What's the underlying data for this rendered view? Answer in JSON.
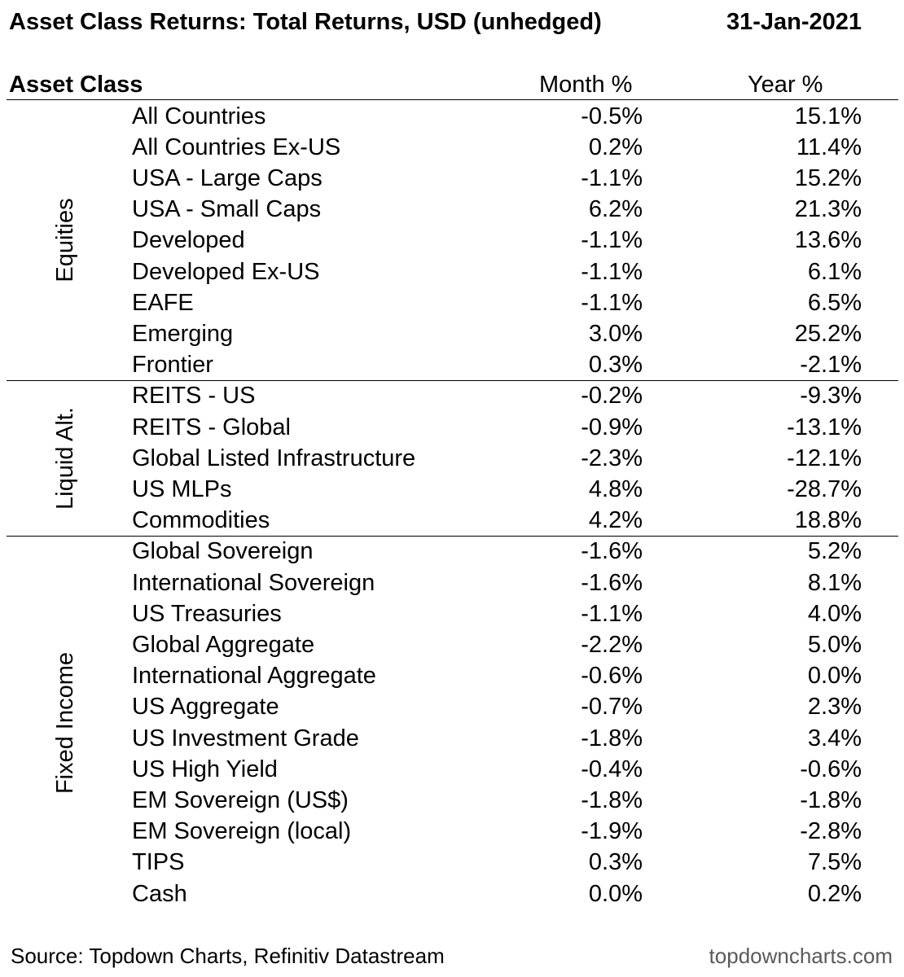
{
  "title": "Asset Class Returns: Total Returns, USD (unhedged)",
  "date": "31-Jan-2021",
  "headers": {
    "asset_class": "Asset Class",
    "month": "Month %",
    "year": "Year %"
  },
  "chart_data": {
    "type": "table",
    "columns": [
      "Asset Class",
      "Month %",
      "Year %"
    ],
    "groups": [
      {
        "name": "Equities",
        "rows": [
          {
            "name": "All Countries",
            "month": "-0.5%",
            "year": "15.1%"
          },
          {
            "name": "All Countries Ex-US",
            "month": "0.2%",
            "year": "11.4%"
          },
          {
            "name": "USA - Large Caps",
            "month": "-1.1%",
            "year": "15.2%"
          },
          {
            "name": "USA - Small Caps",
            "month": "6.2%",
            "year": "21.3%"
          },
          {
            "name": "Developed",
            "month": "-1.1%",
            "year": "13.6%"
          },
          {
            "name": "Developed Ex-US",
            "month": "-1.1%",
            "year": "6.1%"
          },
          {
            "name": "EAFE",
            "month": "-1.1%",
            "year": "6.5%"
          },
          {
            "name": "Emerging",
            "month": "3.0%",
            "year": "25.2%"
          },
          {
            "name": "Frontier",
            "month": "0.3%",
            "year": "-2.1%"
          }
        ]
      },
      {
        "name": "Liquid Alt.",
        "rows": [
          {
            "name": "REITS - US",
            "month": "-0.2%",
            "year": "-9.3%"
          },
          {
            "name": "REITS - Global",
            "month": "-0.9%",
            "year": "-13.1%"
          },
          {
            "name": "Global Listed Infrastructure",
            "month": "-2.3%",
            "year": "-12.1%"
          },
          {
            "name": "US MLPs",
            "month": "4.8%",
            "year": "-28.7%"
          },
          {
            "name": "Commodities",
            "month": "4.2%",
            "year": "18.8%"
          }
        ]
      },
      {
        "name": "Fixed Income",
        "rows": [
          {
            "name": "Global Sovereign",
            "month": "-1.6%",
            "year": "5.2%"
          },
          {
            "name": "International Sovereign",
            "month": "-1.6%",
            "year": "8.1%"
          },
          {
            "name": "US Treasuries",
            "month": "-1.1%",
            "year": "4.0%"
          },
          {
            "name": "Global Aggregate",
            "month": "-2.2%",
            "year": "5.0%"
          },
          {
            "name": "International Aggregate",
            "month": "-0.6%",
            "year": "0.0%"
          },
          {
            "name": "US Aggregate",
            "month": "-0.7%",
            "year": "2.3%"
          },
          {
            "name": "US Investment Grade",
            "month": "-1.8%",
            "year": "3.4%"
          },
          {
            "name": "US High Yield",
            "month": "-0.4%",
            "year": "-0.6%"
          },
          {
            "name": "EM Sovereign (US$)",
            "month": "-1.8%",
            "year": "-1.8%"
          },
          {
            "name": "EM Sovereign (local)",
            "month": "-1.9%",
            "year": "-2.8%"
          },
          {
            "name": "TIPS",
            "month": "0.3%",
            "year": "7.5%"
          },
          {
            "name": "Cash",
            "month": "0.0%",
            "year": "0.2%"
          }
        ]
      }
    ]
  },
  "footer": {
    "source": "Source: Topdown Charts, Refinitiv Datastream",
    "site": "topdowncharts.com"
  }
}
